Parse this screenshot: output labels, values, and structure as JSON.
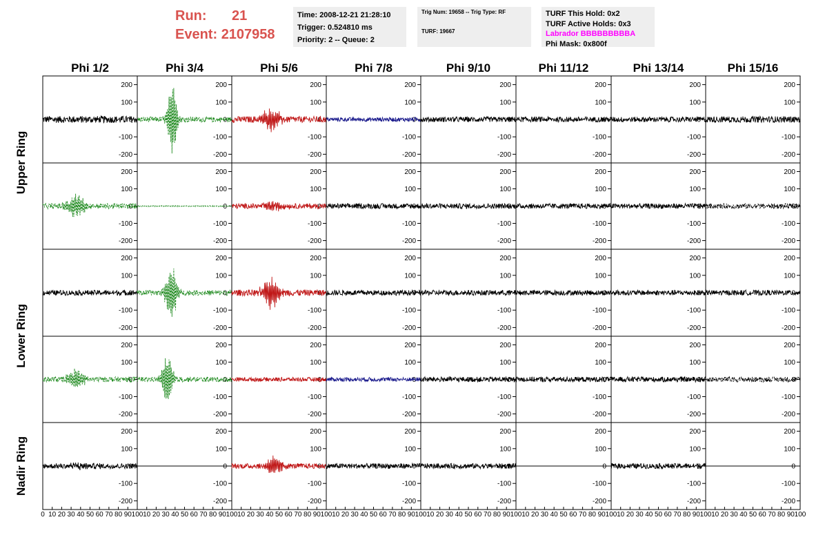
{
  "header": {
    "run_label": "Run:",
    "run_value": "21",
    "event_label": "Event:",
    "event_value": "2107958"
  },
  "info_time": {
    "time": "Time: 2008-12-21 21:28:10",
    "trigger": "Trigger: 0.524810 ms",
    "priority": "Priority: 2 -- Queue: 2"
  },
  "info_trig": {
    "trig": "Trig Num: 19658 -- Trig Type: RF",
    "turf": "TURF: 19667"
  },
  "info_turf": {
    "hold": "TURF This Hold: 0x2",
    "active": "TURF Active Holds: 0x3",
    "labrador": "Labrador BBBBBBBBBA",
    "phimask": "Phi Mask: 0x800f"
  },
  "colors": {
    "black": "#000000",
    "green": "#1f8a1f",
    "red": "#c01818",
    "blue": "#1a1a8c"
  },
  "chart_data": {
    "type": "line",
    "columns": [
      "Phi 1/2",
      "Phi 3/4",
      "Phi 5/6",
      "Phi 7/8",
      "Phi 9/10",
      "Phi 11/12",
      "Phi 13/14",
      "Phi 15/16"
    ],
    "rows": [
      "Upper Ring",
      "",
      "Lower Ring",
      "",
      "Nadir Ring"
    ],
    "xlim": [
      0,
      100
    ],
    "ylim": [
      -250,
      250
    ],
    "yticks": [
      "200",
      "100",
      "0",
      "-100",
      "-200"
    ],
    "xticks": [
      "0",
      "10",
      "20",
      "30",
      "40",
      "50",
      "60",
      "70",
      "80",
      "90",
      "100"
    ],
    "cells": [
      [
        {
          "color": "black",
          "style": "solid",
          "amp": 20,
          "burst": 0,
          "center": 40,
          "width": 15
        },
        {
          "color": "green",
          "style": "dashed",
          "amp": 15,
          "burst": 230,
          "center": 37,
          "width": 5
        },
        {
          "color": "red",
          "style": "solid",
          "amp": 18,
          "burst": 70,
          "center": 42,
          "width": 10
        },
        {
          "color": "blue",
          "style": "solid",
          "amp": 12,
          "burst": 0,
          "center": 50,
          "width": 10
        },
        {
          "color": "black",
          "style": "solid",
          "amp": 15,
          "burst": 0,
          "center": 50,
          "width": 10
        },
        {
          "color": "black",
          "style": "solid",
          "amp": 15,
          "burst": 0,
          "center": 50,
          "width": 10
        },
        {
          "color": "black",
          "style": "solid",
          "amp": 15,
          "burst": 0,
          "center": 50,
          "width": 10
        },
        {
          "color": "black",
          "style": "solid",
          "amp": 18,
          "burst": 0,
          "center": 50,
          "width": 10
        }
      ],
      [
        {
          "color": "green",
          "style": "dashed",
          "amp": 15,
          "burst": 70,
          "center": 35,
          "width": 10
        },
        {
          "color": "green",
          "style": "dashed",
          "amp": 3,
          "burst": 0,
          "center": 50,
          "width": 10
        },
        {
          "color": "red",
          "style": "solid",
          "amp": 15,
          "burst": 25,
          "center": 45,
          "width": 12
        },
        {
          "color": "black",
          "style": "solid",
          "amp": 15,
          "burst": 0,
          "center": 50,
          "width": 10
        },
        {
          "color": "black",
          "style": "solid",
          "amp": 15,
          "burst": 0,
          "center": 50,
          "width": 10
        },
        {
          "color": "black",
          "style": "solid",
          "amp": 15,
          "burst": 0,
          "center": 50,
          "width": 10
        },
        {
          "color": "black",
          "style": "solid",
          "amp": 15,
          "burst": 0,
          "center": 50,
          "width": 10
        },
        {
          "color": "black",
          "style": "dashed",
          "amp": 15,
          "burst": 0,
          "center": 50,
          "width": 10
        }
      ],
      [
        {
          "color": "black",
          "style": "solid",
          "amp": 15,
          "burst": 0,
          "center": 45,
          "width": 10
        },
        {
          "color": "green",
          "style": "dashed",
          "amp": 15,
          "burst": 180,
          "center": 36,
          "width": 6
        },
        {
          "color": "red",
          "style": "solid",
          "amp": 18,
          "burst": 90,
          "center": 42,
          "width": 10
        },
        {
          "color": "black",
          "style": "solid",
          "amp": 15,
          "burst": 0,
          "center": 50,
          "width": 10
        },
        {
          "color": "black",
          "style": "solid",
          "amp": 15,
          "burst": 0,
          "center": 50,
          "width": 10
        },
        {
          "color": "black",
          "style": "solid",
          "amp": 15,
          "burst": 0,
          "center": 50,
          "width": 10
        },
        {
          "color": "black",
          "style": "solid",
          "amp": 15,
          "burst": 0,
          "center": 50,
          "width": 10
        },
        {
          "color": "black",
          "style": "solid",
          "amp": 15,
          "burst": 0,
          "center": 50,
          "width": 10
        }
      ],
      [
        {
          "color": "green",
          "style": "dashed",
          "amp": 15,
          "burst": 60,
          "center": 35,
          "width": 10
        },
        {
          "color": "green",
          "style": "dashed",
          "amp": 15,
          "burst": 170,
          "center": 32,
          "width": 6
        },
        {
          "color": "red",
          "style": "solid",
          "amp": 12,
          "burst": 0,
          "center": 50,
          "width": 10
        },
        {
          "color": "blue",
          "style": "solid",
          "amp": 12,
          "burst": 0,
          "center": 50,
          "width": 10
        },
        {
          "color": "black",
          "style": "solid",
          "amp": 15,
          "burst": 0,
          "center": 50,
          "width": 10
        },
        {
          "color": "black",
          "style": "solid",
          "amp": 15,
          "burst": 0,
          "center": 50,
          "width": 10
        },
        {
          "color": "black",
          "style": "solid",
          "amp": 15,
          "burst": 0,
          "center": 50,
          "width": 10
        },
        {
          "color": "black",
          "style": "dashed",
          "amp": 15,
          "burst": 0,
          "center": 50,
          "width": 10
        }
      ],
      [
        {
          "color": "black",
          "style": "solid",
          "amp": 15,
          "burst": 15,
          "center": 40,
          "width": 15
        },
        {
          "color": "black",
          "style": "solid",
          "amp": 0,
          "burst": 0,
          "center": 50,
          "width": 10
        },
        {
          "color": "red",
          "style": "solid",
          "amp": 15,
          "burst": 60,
          "center": 45,
          "width": 8
        },
        {
          "color": "black",
          "style": "solid",
          "amp": 15,
          "burst": 0,
          "center": 50,
          "width": 10
        },
        {
          "color": "black",
          "style": "solid",
          "amp": 15,
          "burst": 0,
          "center": 50,
          "width": 10
        },
        {
          "color": "black",
          "style": "solid",
          "amp": 0,
          "burst": 0,
          "center": 50,
          "width": 10
        },
        {
          "color": "black",
          "style": "solid",
          "amp": 15,
          "burst": 0,
          "center": 50,
          "width": 10
        },
        {
          "color": "black",
          "style": "solid",
          "amp": 0,
          "burst": 0,
          "center": 50,
          "width": 10
        }
      ]
    ]
  }
}
